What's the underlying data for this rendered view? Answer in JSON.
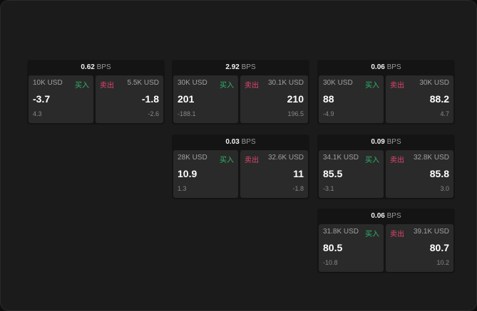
{
  "colors": {
    "buy": "#2fb36b",
    "sell": "#e0466e"
  },
  "unit": "BPS",
  "buy_label": "买入",
  "sell_label": "卖出",
  "cards": [
    {
      "spread": "0.62",
      "bid_size": "10K USD",
      "bid": "-3.7",
      "bid_chg": "4.3",
      "ask_size": "5.5K USD",
      "ask": "-1.8",
      "ask_chg": "-2.6"
    },
    {
      "spread": "2.92",
      "bid_size": "30K USD",
      "bid": "201",
      "bid_chg": "-188.1",
      "ask_size": "30.1K USD",
      "ask": "210",
      "ask_chg": "196.5"
    },
    {
      "spread": "0.06",
      "bid_size": "30K USD",
      "bid": "88",
      "bid_chg": "-4.9",
      "ask_size": "30K USD",
      "ask": "88.2",
      "ask_chg": "4.7"
    },
    {
      "spread": "0.03",
      "bid_size": "28K USD",
      "bid": "10.9",
      "bid_chg": "1.3",
      "ask_size": "32.6K USD",
      "ask": "11",
      "ask_chg": "-1.8"
    },
    {
      "spread": "0.09",
      "bid_size": "34.1K USD",
      "bid": "85.5",
      "bid_chg": "-3.1",
      "ask_size": "32.8K USD",
      "ask": "85.8",
      "ask_chg": "3.0"
    },
    {
      "spread": "0.06",
      "bid_size": "31.8K USD",
      "bid": "80.5",
      "bid_chg": "-10.8",
      "ask_size": "39.1K USD",
      "ask": "80.7",
      "ask_chg": "10.2"
    }
  ]
}
